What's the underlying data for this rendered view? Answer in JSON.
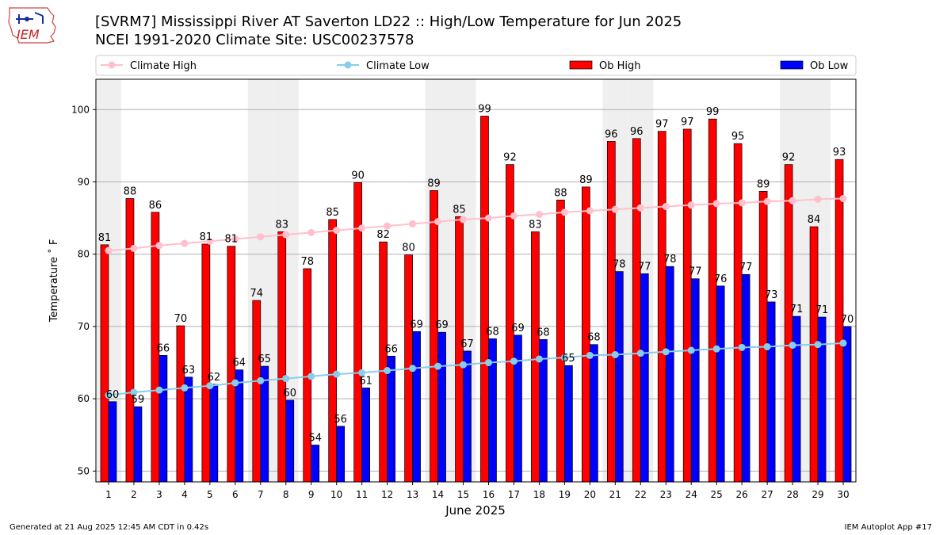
{
  "header": {
    "title_line1": "[SVRM7] Mississippi River  AT Saverton LD22 :: High/Low Temperature for Jun 2025",
    "title_line2": "NCEI 1991-2020 Climate Site: USC00237578",
    "logo_text": "IEM"
  },
  "footer": {
    "generated": "Generated at 21 Aug 2025 12:45 AM CDT in 0.42s",
    "app": "IEM Autoplot App #17"
  },
  "chart_data": {
    "type": "bar",
    "xlabel": "June 2025",
    "ylabel": "Temperature ˚ F",
    "ylim": [
      48.5,
      104.2
    ],
    "yticks": [
      50,
      60,
      70,
      80,
      90,
      100
    ],
    "grid": true,
    "legend_placement": "top",
    "categories": [
      "1",
      "2",
      "3",
      "4",
      "5",
      "6",
      "7",
      "8",
      "9",
      "10",
      "11",
      "12",
      "13",
      "14",
      "15",
      "16",
      "17",
      "18",
      "19",
      "20",
      "21",
      "22",
      "23",
      "24",
      "25",
      "26",
      "27",
      "28",
      "29",
      "30"
    ],
    "weekend_shading_days": [
      1,
      7,
      8,
      14,
      15,
      21,
      22,
      28,
      29
    ],
    "colors": {
      "ob_high": "#ff0000",
      "ob_low": "#0000ff",
      "climate_high": "#ffc0cb",
      "climate_low": "#87ceeb",
      "weekend": "#efefef",
      "grid": "#b0b0b0"
    },
    "series": [
      {
        "name": "Climate High",
        "kind": "line",
        "values": [
          80.5,
          80.8,
          81.2,
          81.5,
          81.8,
          82.1,
          82.4,
          82.7,
          83.0,
          83.3,
          83.6,
          83.9,
          84.2,
          84.5,
          84.8,
          85.0,
          85.3,
          85.5,
          85.8,
          86.0,
          86.2,
          86.4,
          86.6,
          86.8,
          87.0,
          87.1,
          87.3,
          87.4,
          87.6,
          87.7
        ]
      },
      {
        "name": "Climate Low",
        "kind": "line",
        "values": [
          60.5,
          60.9,
          61.2,
          61.5,
          61.8,
          62.2,
          62.5,
          62.8,
          63.1,
          63.4,
          63.6,
          63.9,
          64.2,
          64.5,
          64.7,
          65.0,
          65.2,
          65.5,
          65.7,
          66.0,
          66.1,
          66.3,
          66.5,
          66.7,
          66.9,
          67.1,
          67.2,
          67.4,
          67.5,
          67.7
        ]
      },
      {
        "name": "Ob High",
        "kind": "bar",
        "values": [
          81.3,
          87.7,
          85.8,
          70.1,
          81.4,
          81.1,
          73.6,
          83.1,
          78.0,
          84.8,
          89.9,
          81.7,
          79.9,
          88.8,
          85.2,
          99.1,
          92.4,
          83.1,
          87.5,
          89.3,
          95.6,
          96.0,
          97.0,
          97.3,
          98.7,
          95.3,
          88.7,
          92.4,
          83.8,
          93.1
        ],
        "labels": [
          "81",
          "88",
          "86",
          "70",
          "81",
          "81",
          "74",
          "83",
          "78",
          "85",
          "90",
          "82",
          "80",
          "89",
          "85",
          "99",
          "92",
          "83",
          "88",
          "89",
          "96",
          "96",
          "97",
          "97",
          "99",
          "95",
          "89",
          "92",
          "84",
          "93"
        ]
      },
      {
        "name": "Ob Low",
        "kind": "bar",
        "values": [
          59.6,
          58.9,
          66.0,
          63.0,
          62.0,
          64.0,
          64.5,
          59.8,
          53.6,
          56.2,
          61.5,
          65.9,
          69.3,
          69.2,
          66.6,
          68.3,
          68.8,
          68.2,
          64.6,
          67.5,
          77.6,
          77.3,
          78.3,
          76.6,
          75.6,
          77.2,
          73.4,
          71.4,
          71.3,
          70.0
        ],
        "labels": [
          "60",
          "59",
          "66",
          "63",
          "62",
          "64",
          "65",
          "60",
          "54",
          "56",
          "61",
          "66",
          "69",
          "69",
          "67",
          "68",
          "69",
          "68",
          "65",
          "68",
          "78",
          "77",
          "78",
          "77",
          "76",
          "77",
          "73",
          "71",
          "71",
          "70"
        ]
      }
    ]
  }
}
